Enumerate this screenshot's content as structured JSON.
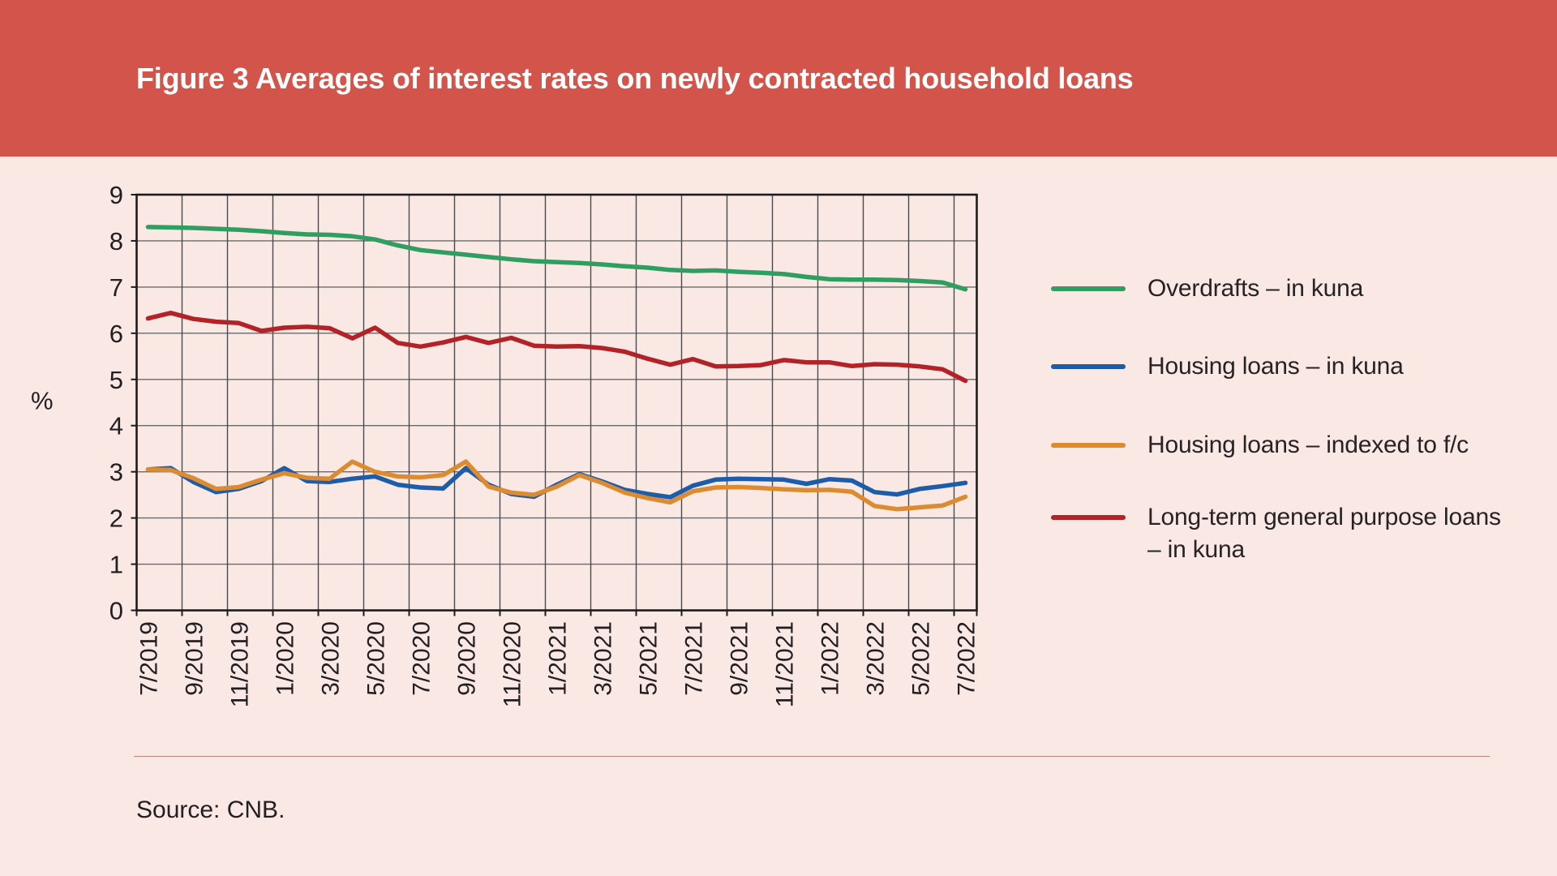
{
  "banner": {
    "title": "Figure 3 Averages of interest rates on newly contracted household loans",
    "bg_color": "#d2544a",
    "text_color": "#ffffff"
  },
  "source": {
    "text": "Source: CNB."
  },
  "chart_data": {
    "type": "line",
    "ylabel": "%",
    "ylim": [
      0,
      9
    ],
    "yticks": [
      0,
      1,
      2,
      3,
      4,
      5,
      6,
      7,
      8,
      9
    ],
    "grid": "both",
    "legend_position": "right",
    "x": [
      "7/2019",
      "8/2019",
      "9/2019",
      "10/2019",
      "11/2019",
      "12/2019",
      "1/2020",
      "2/2020",
      "3/2020",
      "4/2020",
      "5/2020",
      "6/2020",
      "7/2020",
      "8/2020",
      "9/2020",
      "10/2020",
      "11/2020",
      "12/2020",
      "1/2021",
      "2/2021",
      "3/2021",
      "4/2021",
      "5/2021",
      "6/2021",
      "7/2021",
      "8/2021",
      "9/2021",
      "10/2021",
      "11/2021",
      "12/2021",
      "1/2022",
      "2/2022",
      "3/2022",
      "4/2022",
      "5/2022",
      "6/2022",
      "7/2022"
    ],
    "x_tick_labels": [
      "7/2019",
      "9/2019",
      "11/2019",
      "1/2020",
      "3/2020",
      "5/2020",
      "7/2020",
      "9/2020",
      "11/2020",
      "1/2021",
      "3/2021",
      "5/2021",
      "7/2021",
      "9/2021",
      "11/2021",
      "1/2022",
      "3/2022",
      "5/2022",
      "7/2022"
    ],
    "colors": {
      "grid_h": "#6a6a6a",
      "grid_v": "#4a4a4a",
      "border": "#1c1c1c"
    },
    "series": [
      {
        "name": "Overdrafts – in kuna",
        "color": "#2f9e60",
        "values": [
          8.3,
          8.29,
          8.28,
          8.26,
          8.24,
          8.21,
          8.17,
          8.14,
          8.13,
          8.1,
          8.03,
          7.9,
          7.8,
          7.75,
          7.7,
          7.65,
          7.6,
          7.56,
          7.54,
          7.52,
          7.49,
          7.45,
          7.42,
          7.37,
          7.35,
          7.36,
          7.33,
          7.31,
          7.28,
          7.22,
          7.17,
          7.16,
          7.16,
          7.15,
          7.13,
          7.1,
          6.95
        ]
      },
      {
        "name": "Housing loans – in kuna",
        "color": "#1d5ca9",
        "values": [
          3.05,
          3.08,
          2.78,
          2.56,
          2.63,
          2.8,
          3.08,
          2.8,
          2.78,
          2.85,
          2.9,
          2.72,
          2.66,
          2.64,
          3.08,
          2.72,
          2.52,
          2.46,
          2.72,
          2.95,
          2.79,
          2.61,
          2.52,
          2.45,
          2.7,
          2.83,
          2.85,
          2.84,
          2.83,
          2.74,
          2.84,
          2.81,
          2.56,
          2.51,
          2.63,
          2.69,
          2.76
        ]
      },
      {
        "name": "Housing loans – indexed to f/c",
        "color": "#dd8b30",
        "values": [
          3.05,
          3.04,
          2.86,
          2.63,
          2.67,
          2.83,
          2.97,
          2.87,
          2.85,
          3.22,
          3.0,
          2.9,
          2.88,
          2.93,
          3.22,
          2.68,
          2.55,
          2.5,
          2.68,
          2.93,
          2.76,
          2.55,
          2.43,
          2.34,
          2.58,
          2.66,
          2.67,
          2.65,
          2.62,
          2.6,
          2.61,
          2.57,
          2.26,
          2.19,
          2.23,
          2.27,
          2.46
        ]
      },
      {
        "name": "Long-term general purpose loans – in kuna",
        "label_lines": [
          "Long-term general purpose loans",
          "– in kuna"
        ],
        "color": "#b22226",
        "values": [
          6.32,
          6.44,
          6.31,
          6.25,
          6.22,
          6.05,
          6.12,
          6.14,
          6.11,
          5.89,
          6.12,
          5.79,
          5.71,
          5.8,
          5.92,
          5.79,
          5.9,
          5.73,
          5.71,
          5.72,
          5.68,
          5.6,
          5.45,
          5.32,
          5.44,
          5.28,
          5.29,
          5.31,
          5.42,
          5.37,
          5.37,
          5.29,
          5.33,
          5.32,
          5.28,
          5.22,
          4.97
        ]
      }
    ]
  }
}
